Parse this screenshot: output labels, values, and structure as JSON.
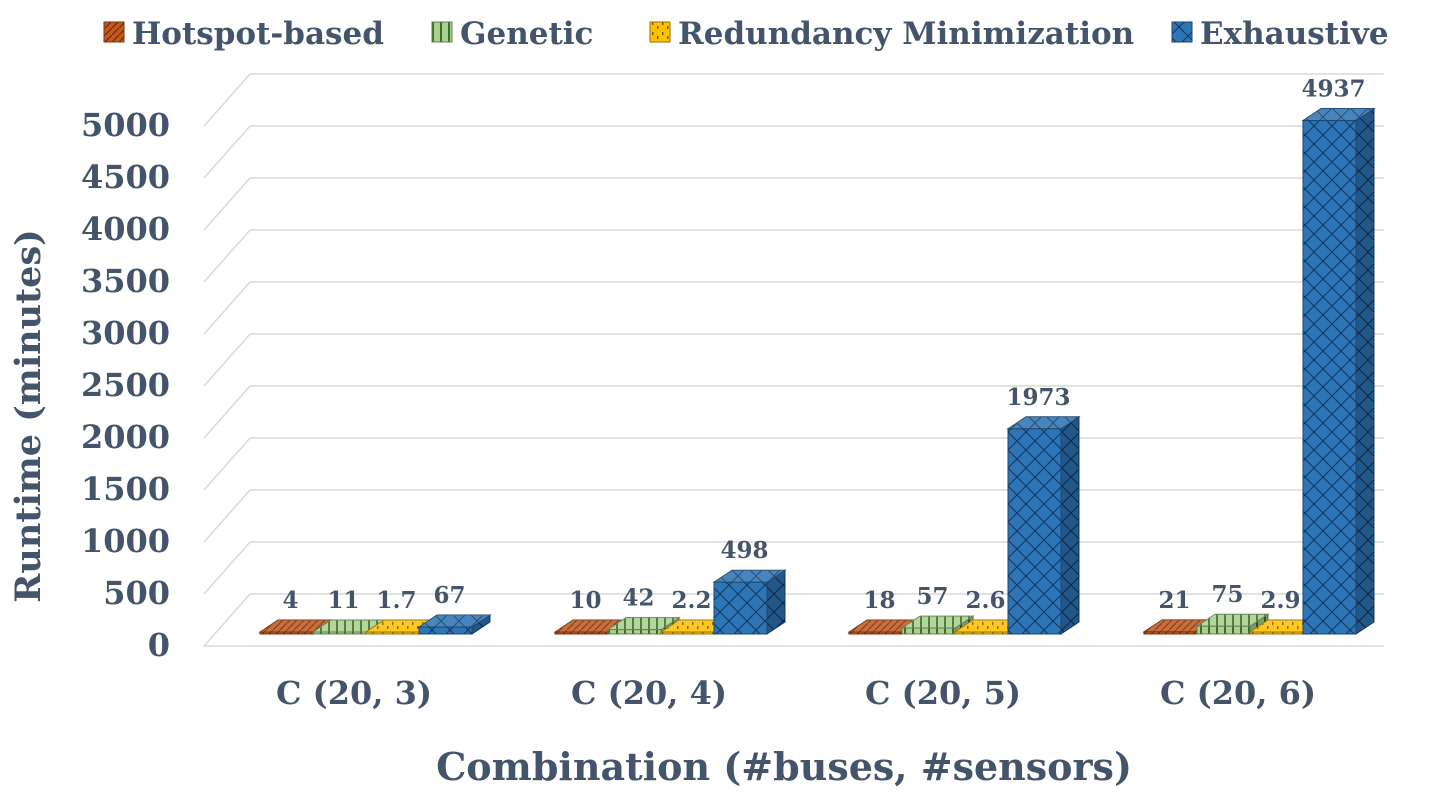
{
  "chart_data": {
    "type": "bar",
    "title": "",
    "xlabel": "Combination (#buses, #sensors)",
    "ylabel": "Runtime (minutes)",
    "ylim": [
      0,
      5000
    ],
    "yticks": [
      0,
      500,
      1000,
      1500,
      2000,
      2500,
      3000,
      3500,
      4000,
      4500,
      5000
    ],
    "yticks_text": [
      "0",
      "500",
      "1000",
      "1500",
      "2000",
      "2500",
      "3000",
      "3500",
      "4000",
      "4500",
      "5000"
    ],
    "categories": [
      "C (20, 3)",
      "C (20, 4)",
      "C (20, 5)",
      "C (20, 6)"
    ],
    "legend_position": "top",
    "grid": true,
    "series": [
      {
        "name": "Hotspot-based",
        "color": "#c55a1e",
        "values": [
          4,
          10,
          18,
          21
        ],
        "labels": [
          "4",
          "10",
          "18",
          "21"
        ]
      },
      {
        "name": "Genetic",
        "color": "#a9d18e",
        "values": [
          11,
          42,
          57,
          75
        ],
        "labels": [
          "11",
          "42",
          "57",
          "75"
        ]
      },
      {
        "name": "Redundancy Minimization",
        "color": "#ffc000",
        "values": [
          1.7,
          2.2,
          2.6,
          2.9
        ],
        "labels": [
          "1.7",
          "2.2",
          "2.6",
          "2.9"
        ]
      },
      {
        "name": "Exhaustive",
        "color": "#2e75b6",
        "values": [
          67,
          498,
          1973,
          4937
        ],
        "labels": [
          "67",
          "498",
          "1973",
          "4937"
        ]
      }
    ]
  }
}
